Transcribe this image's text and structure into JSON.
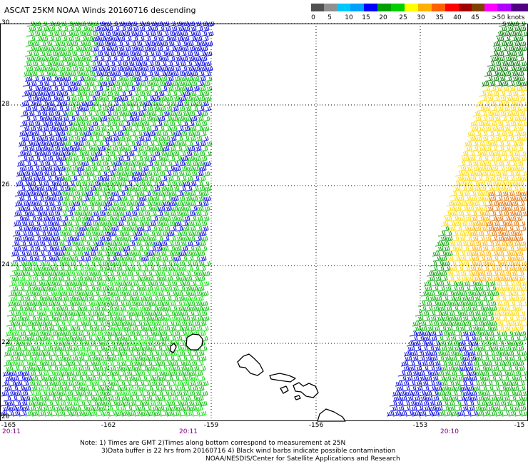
{
  "title": "ASCAT 25KM NOAA Winds 20160716 descending",
  "legend": {
    "unit": ">50 knots",
    "labels": [
      "0",
      "5",
      "10",
      "15",
      "20",
      "25",
      "30",
      "35",
      "40",
      "45"
    ],
    "colors": [
      "#505050",
      "#909090",
      "#00c8ff",
      "#00a0ff",
      "#0000ff",
      "#00a000",
      "#00d000",
      "#ffff00",
      "#ffb000",
      "#ff6000",
      "#ff0000",
      "#a00000",
      "#804000",
      "#ff00ff",
      "#b000ff",
      "#500080"
    ]
  },
  "axes": {
    "lat_labels": [
      "30",
      "28",
      "26",
      "24",
      "22",
      "20"
    ],
    "lon_labels": [
      "-165",
      "-162",
      "-159",
      "-156",
      "-153",
      "-15"
    ],
    "times": [
      "20:11",
      "20:11",
      "20:10"
    ]
  },
  "notes": {
    "line1": "Note: 1) Times are GMT  2)Times along bottom correspond to measurement at 25N",
    "line2": "3)Data buffer is 22 hrs from 20160716  4) Black wind barbs indicate possible contamination",
    "line3": "NOAA/NESDIS/Center for Satellite Applications and Research"
  },
  "map_content": {
    "swaths": [
      "western swath, mostly 15-20 knot blue and green barbs",
      "eastern swath, 15-30 knot barbs from blue through yellow and orange"
    ],
    "islands": [
      "Kauai",
      "Oahu",
      "Molokai",
      "Lanai",
      "Maui",
      "Hawaii"
    ]
  }
}
